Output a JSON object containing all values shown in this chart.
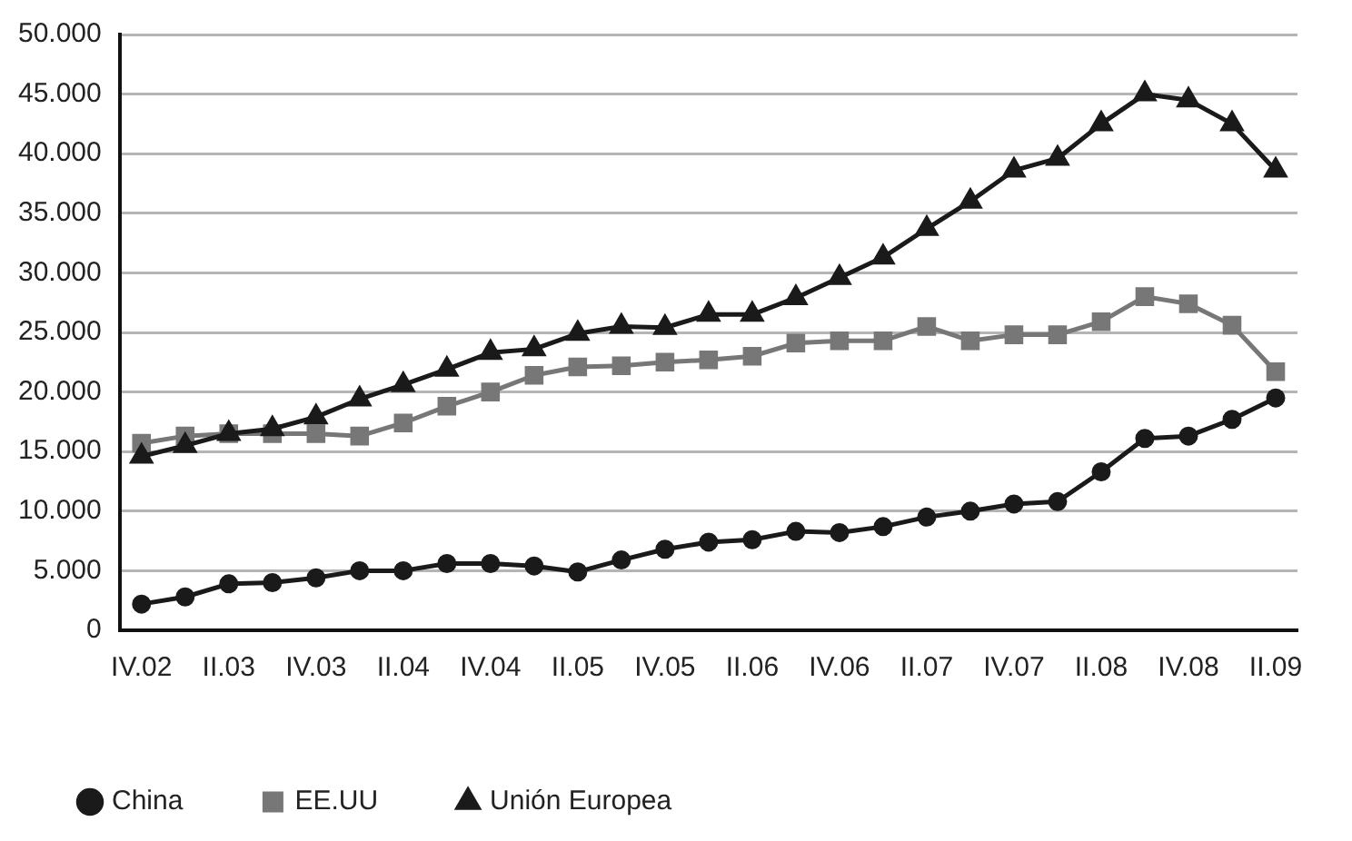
{
  "chart_data": {
    "type": "line",
    "categories": [
      "IV.02",
      null,
      "II.03",
      null,
      "IV.03",
      null,
      "II.04",
      null,
      "IV.04",
      null,
      "II.05",
      null,
      "IV.05",
      null,
      "II.06",
      null,
      "IV.06",
      null,
      "II.07",
      null,
      "IV.07",
      null,
      "II.08",
      null,
      "IV.08",
      null,
      "II.09"
    ],
    "series": [
      {
        "name": "China",
        "color": "#1a1a1a",
        "marker": "circle",
        "values": [
          2200,
          2800,
          3900,
          4000,
          4400,
          5000,
          5000,
          5600,
          5600,
          5400,
          4900,
          5900,
          6800,
          7400,
          7600,
          8300,
          8200,
          8700,
          9500,
          10000,
          10600,
          10800,
          13300,
          16100,
          16300,
          17700,
          19500
        ]
      },
      {
        "name": "EE.UU",
        "color": "#777777",
        "marker": "square",
        "values": [
          15700,
          16300,
          16500,
          16500,
          16500,
          16300,
          17400,
          18800,
          20000,
          21400,
          22100,
          22200,
          22500,
          22700,
          23000,
          24100,
          24300,
          24300,
          25500,
          24300,
          24800,
          24800,
          25900,
          28000,
          27400,
          25600,
          21700
        ]
      },
      {
        "name": "Unión Europea",
        "color": "#1a1a1a",
        "marker": "triangle",
        "values": [
          14600,
          15500,
          16500,
          16900,
          17900,
          19400,
          20600,
          21900,
          23300,
          23600,
          24900,
          25500,
          25400,
          26500,
          26500,
          27900,
          29600,
          31300,
          33700,
          36000,
          38600,
          39600,
          42500,
          45000,
          44500,
          42500,
          38600
        ]
      }
    ],
    "ylim": [
      0,
      50000
    ],
    "yticks": [
      0,
      {
        "value": 5000,
        "label": "5.000"
      },
      {
        "value": 10000,
        "label": "10.000"
      },
      {
        "value": 15000,
        "label": "15.000"
      },
      {
        "value": 20000,
        "label": "20.000"
      },
      {
        "value": 25000,
        "label": "25.000"
      },
      {
        "value": 30000,
        "label": "30.000"
      },
      {
        "value": 35000,
        "label": "35.000"
      },
      {
        "value": 40000,
        "label": "40.000"
      },
      {
        "value": 45000,
        "label": "45.000"
      },
      {
        "value": 50000,
        "label": "50.000"
      }
    ],
    "grid": "y",
    "legend": "bottom left",
    "line_style": "solid"
  }
}
